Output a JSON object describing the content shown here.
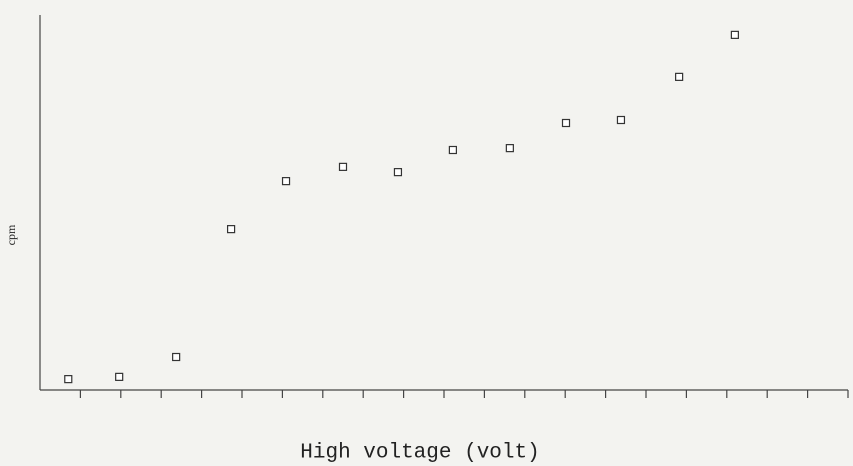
{
  "chart_data": {
    "type": "scatter",
    "x_label": "High voltage (volt)",
    "y_label": "cpm",
    "x": [
      0.7,
      1.96,
      3.37,
      4.73,
      6.09,
      7.5,
      8.86,
      10.22,
      11.63,
      13.02,
      14.38,
      15.82,
      17.2
    ],
    "y": [
      2.9,
      3.5,
      8.8,
      42.9,
      55.7,
      59.5,
      58.1,
      64,
      64.5,
      71.2,
      72,
      83.5,
      94.7
    ],
    "xlim": [
      0,
      20
    ],
    "ylim": [
      0,
      100
    ],
    "xticks": [
      1,
      2,
      3,
      4,
      5,
      6,
      7,
      8,
      9,
      10,
      11,
      12,
      13,
      14,
      15,
      16,
      17,
      18,
      19,
      20
    ],
    "marker_color": "#333333"
  }
}
